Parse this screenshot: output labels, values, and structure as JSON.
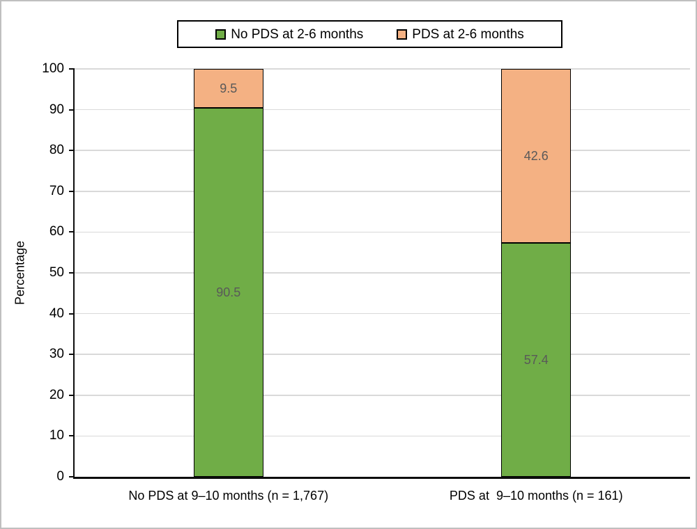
{
  "chart_data": {
    "type": "bar",
    "stacked": true,
    "orientation": "vertical",
    "title": "",
    "xlabel": "",
    "ylabel": "Percentage",
    "ylim": [
      0,
      100
    ],
    "yticks": [
      0,
      10,
      20,
      30,
      40,
      50,
      60,
      70,
      80,
      90,
      100
    ],
    "grid": "horizontal",
    "gridline_color": "#d9d9d9",
    "axis_color": "#0d0d0d",
    "bar_border_color": "#000000",
    "data_label_color": "#595959",
    "categories": [
      "No PDS at 9–10 months (n = 1,767)",
      "PDS at  9–10 months (n = 161)"
    ],
    "series": [
      {
        "name": "No PDS at 2-6 months",
        "color": "#70ad47",
        "values": [
          90.5,
          57.4
        ]
      },
      {
        "name": "PDS at 2-6 months",
        "color": "#f4b183",
        "values": [
          9.5,
          42.6
        ]
      }
    ],
    "legend": {
      "position": "top",
      "border_color": "#000000"
    }
  }
}
